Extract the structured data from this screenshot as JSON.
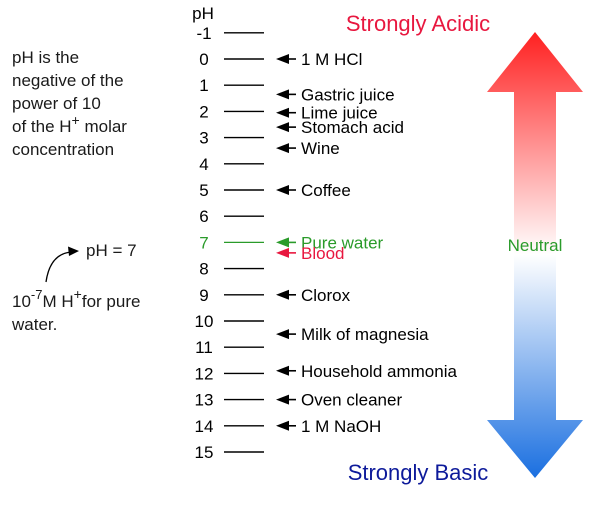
{
  "header": {
    "ph_label": "pH"
  },
  "scale": {
    "ticks": [
      "-1",
      "0",
      "1",
      "2",
      "3",
      "4",
      "5",
      "6",
      "7",
      "8",
      "9",
      "10",
      "11",
      "12",
      "13",
      "14",
      "15"
    ],
    "neutral_value": "7"
  },
  "substances": [
    {
      "name": "1 M HCl",
      "ph": 0,
      "color": "#000000"
    },
    {
      "name": "Gastric juice",
      "ph": 1.35,
      "color": "#000000"
    },
    {
      "name": "Lime juice",
      "ph": 2.05,
      "color": "#000000"
    },
    {
      "name": "Stomach acid",
      "ph": 2.6,
      "color": "#000000"
    },
    {
      "name": "Wine",
      "ph": 3.4,
      "color": "#000000"
    },
    {
      "name": "Coffee",
      "ph": 5,
      "color": "#000000"
    },
    {
      "name": "Pure water",
      "ph": 7,
      "color": "#2a9b2a"
    },
    {
      "name": "Blood",
      "ph": 7.4,
      "color": "#e8173f"
    },
    {
      "name": "Clorox",
      "ph": 9,
      "color": "#000000"
    },
    {
      "name": "Milk of magnesia",
      "ph": 10.5,
      "color": "#000000"
    },
    {
      "name": "Household ammonia",
      "ph": 11.9,
      "color": "#000000"
    },
    {
      "name": "Oven cleaner",
      "ph": 13,
      "color": "#000000"
    },
    {
      "name": "1 M NaOH",
      "ph": 14,
      "color": "#000000"
    }
  ],
  "arrow": {
    "top_label": "Strongly Acidic",
    "middle_label": "Neutral",
    "bottom_label": "Strongly Basic",
    "acid_color": "#ff2020",
    "neutral_color": "#ffffff",
    "base_color": "#1a6fe0",
    "top_label_color": "#e8173f",
    "middle_label_color": "#2a9b2a",
    "bottom_label_color": "#0d1a9a"
  },
  "definition": {
    "lines": [
      "pH is the",
      "negative of the",
      "power of 10"
    ],
    "line4_prefix": "of the H",
    "line4_sup": "+",
    "line4_suffix": " molar",
    "line5": "concentration"
  },
  "example": {
    "ph_eq": "pH = 7",
    "base": "10",
    "exp": "-7",
    "unit": "M  H",
    "ion_sup": "+",
    "tail": "for pure",
    "line2": "water."
  }
}
